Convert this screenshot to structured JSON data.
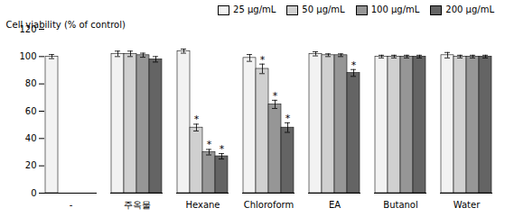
{
  "chart_data": {
    "type": "bar",
    "categories": [
      "-",
      "주옥물",
      "Hexane",
      "Chloroform",
      "EA",
      "Butanol",
      "Water"
    ],
    "series": [
      {
        "name": "25 μg/mL",
        "color": "#f2f2f2",
        "values": [
          100,
          102,
          104,
          99,
          102,
          100,
          101
        ],
        "errors": [
          1.5,
          2,
          1.5,
          2.5,
          1.5,
          1,
          2
        ]
      },
      {
        "name": "50 μg/mL",
        "color": "#d0d0d0",
        "values": [
          null,
          102,
          48,
          91,
          101,
          100,
          100
        ],
        "errors": [
          null,
          2,
          2.5,
          3.5,
          1,
          1,
          1
        ]
      },
      {
        "name": "100 μg/mL",
        "color": "#969696",
        "values": [
          null,
          101,
          30,
          65,
          101,
          100,
          100
        ],
        "errors": [
          null,
          1.5,
          2,
          3,
          1,
          1,
          1
        ]
      },
      {
        "name": "200 μg/mL",
        "color": "#646464",
        "values": [
          null,
          98,
          27,
          48,
          88,
          100,
          100
        ],
        "errors": [
          null,
          2,
          2,
          3.5,
          2.5,
          1,
          1
        ]
      }
    ],
    "annotations": [
      {
        "text": "*",
        "category": "Hexane",
        "series": "50 μg/mL"
      },
      {
        "text": "*",
        "category": "Hexane",
        "series": "100 μg/mL"
      },
      {
        "text": "*",
        "category": "Hexane",
        "series": "200 μg/mL"
      },
      {
        "text": "*",
        "category": "Chloroform",
        "series": "50 μg/mL"
      },
      {
        "text": "*",
        "category": "Chloroform",
        "series": "100 μg/mL"
      },
      {
        "text": "*",
        "category": "Chloroform",
        "series": "200 μg/mL"
      },
      {
        "text": "*",
        "category": "EA",
        "series": "200 μg/mL"
      }
    ],
    "ylabel": "Cell viability (% of control)",
    "ylim": [
      0,
      120
    ],
    "yticks": [
      0,
      20,
      40,
      60,
      80,
      100,
      120
    ],
    "grid": false,
    "legend": "upper right"
  }
}
